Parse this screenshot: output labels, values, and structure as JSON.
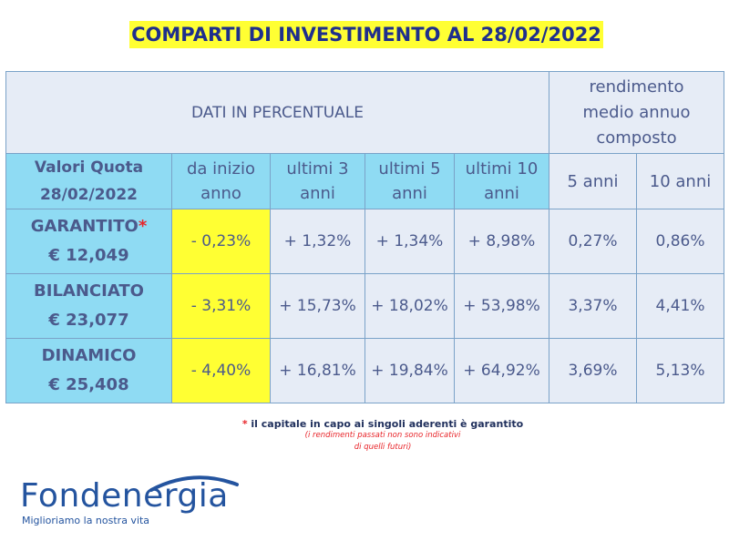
{
  "title": "COMPARTI DI INVESTIMENTO AL 28/02/2022",
  "table": {
    "header_main": "DATI IN PERCENTUALE",
    "header_rendimento": [
      "rendimento",
      "medio annuo",
      "composto"
    ],
    "quote_header": [
      "Valori Quota",
      "28/02/2022"
    ],
    "columns": [
      [
        "da inizio",
        "anno"
      ],
      [
        "ultimi 3",
        "anni"
      ],
      [
        "ultimi 5",
        "anni"
      ],
      [
        "ultimi 10",
        "anni"
      ],
      [
        "5 anni"
      ],
      [
        "10 anni"
      ]
    ],
    "rows": [
      {
        "name": "GARANTITO",
        "star": "*",
        "value": "€ 12,049",
        "cells": [
          "- 0,23%",
          "+ 1,32%",
          "+ 1,34%",
          "+ 8,98%",
          "0,27%",
          "0,86%"
        ]
      },
      {
        "name": "BILANCIATO",
        "star": "",
        "value": "€ 23,077",
        "cells": [
          "- 3,31%",
          "+ 15,73%",
          "+ 18,02%",
          "+ 53,98%",
          "3,37%",
          "4,41%"
        ]
      },
      {
        "name": "DINAMICO",
        "star": "",
        "value": "€ 25,408",
        "cells": [
          "- 4,40%",
          "+ 16,81%",
          "+ 19,84%",
          "+ 64,92%",
          "3,69%",
          "5,13%"
        ]
      }
    ]
  },
  "notes": {
    "star": "*",
    "main": " il capitale in capo ai singoli aderenti è garantito",
    "sub": "(i rendimenti passati non sono indicativi di quelli futuri)"
  },
  "brand": {
    "name": "Fondenergia",
    "tagline": "Miglioriamo la nostra vita",
    "colors": {
      "brand": "#24549f",
      "highlight": "#ffff33",
      "cyan": "#8fdbf3",
      "light": "#e6ecf6",
      "star": "#e8252a"
    }
  }
}
